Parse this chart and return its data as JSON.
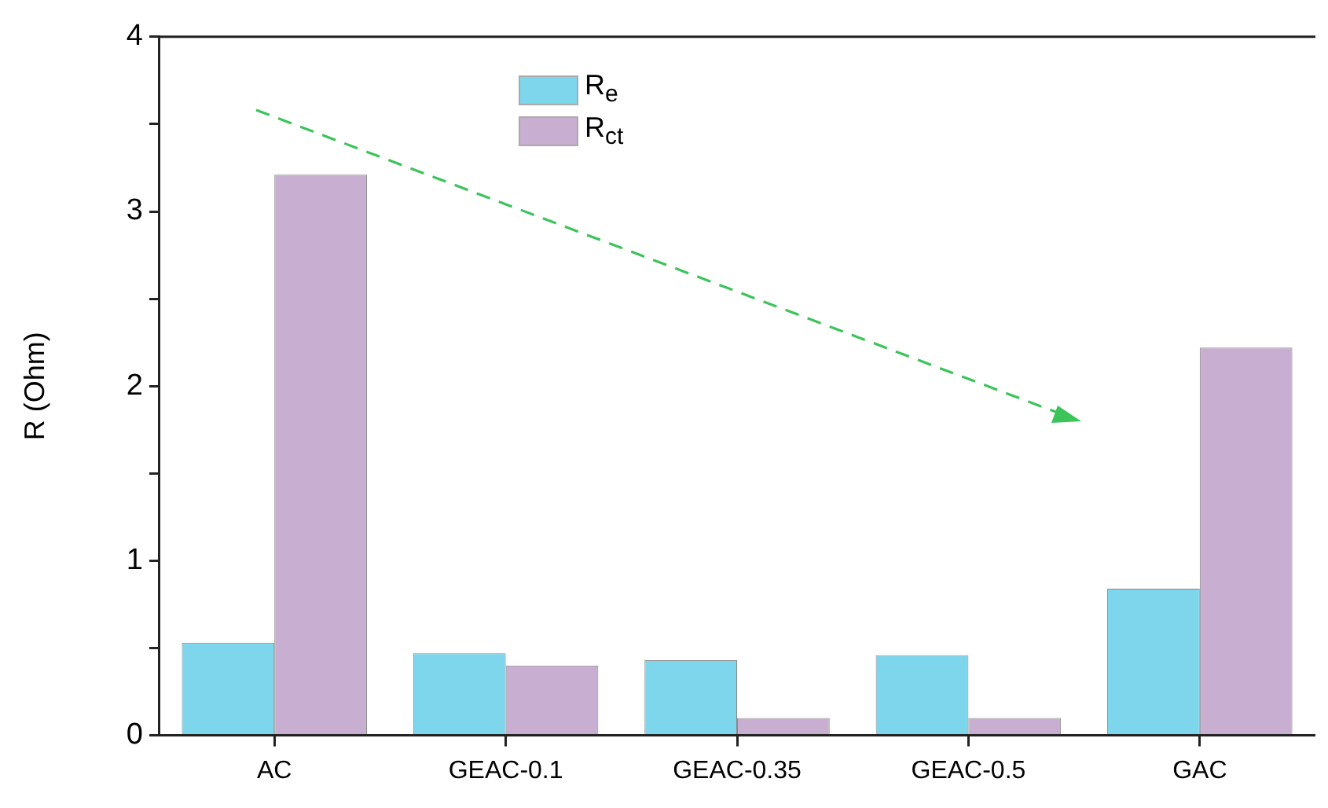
{
  "chart_data": {
    "type": "bar",
    "ylabel": "R (Ohm)",
    "categories": [
      "AC",
      "GEAC-0.1",
      "GEAC-0.35",
      "GEAC-0.5",
      "GAC"
    ],
    "series": [
      {
        "name": "R$_{e}$",
        "color": "#7dd6ec",
        "values": [
          0.53,
          0.47,
          0.43,
          0.46,
          0.84
        ]
      },
      {
        "name": "R$_{ct}$",
        "color": "#c8aed0",
        "values": [
          3.21,
          0.4,
          0.1,
          0.1,
          2.22
        ]
      }
    ],
    "ylim": [
      0,
      4
    ],
    "yticks": [
      0,
      {
        "value": 0.5,
        "label": null
      },
      1,
      {
        "value": 1.5,
        "label": null
      },
      2,
      {
        "value": 2.5,
        "label": null
      },
      3,
      {
        "value": 3.5,
        "label": null
      },
      4
    ],
    "grid": false,
    "legend": "top"
  }
}
